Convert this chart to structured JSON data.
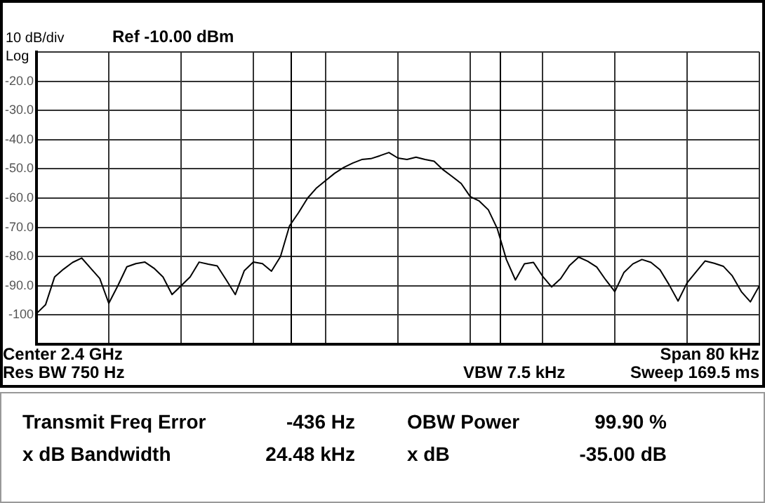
{
  "chart_data": {
    "type": "line",
    "annotations": [
      "10 dB/div",
      "Log",
      "Ref -10.00 dBm",
      "Center 2.4 GHz",
      "Span 80 kHz",
      "Res BW 750 Hz",
      "VBW 7.5 kHz",
      "Sweep 169.5 ms",
      "Transmit Freq Error",
      "-436 Hz",
      "OBW Power",
      "99.90 %",
      "x dB Bandwidth",
      "24.48 kHz",
      "x dB",
      "-35.00 dB"
    ],
    "categories": [
      null,
      null,
      null,
      null,
      null,
      null,
      null,
      null,
      null,
      null,
      null,
      null,
      null,
      null,
      null,
      null,
      null,
      null,
      null,
      null,
      null,
      null,
      null,
      null,
      null,
      null,
      null,
      null,
      null,
      null,
      null,
      null,
      null,
      null,
      null,
      null,
      null,
      null,
      null,
      null,
      null,
      null,
      null,
      null,
      null,
      null,
      null,
      null,
      null,
      null,
      null,
      null,
      null,
      null,
      null,
      null,
      null,
      null,
      null,
      null,
      null,
      null,
      null,
      null,
      null,
      null,
      null,
      null,
      null,
      null,
      null,
      null,
      null,
      null,
      null,
      null,
      null,
      null,
      null,
      null,
      null
    ],
    "ylim": [
      -110,
      -10
    ],
    "yticks": [
      {
        "value": -10,
        "label": null
      },
      {
        "value": -20,
        "label": "-20.0"
      },
      {
        "value": -30,
        "label": "-30.0"
      },
      {
        "value": -40,
        "label": "-40.0"
      },
      {
        "value": -50,
        "label": "-50.0"
      },
      {
        "value": -60,
        "label": "-60.0"
      },
      {
        "value": -70,
        "label": "-70.0"
      },
      {
        "value": -80,
        "label": "-80.0"
      },
      {
        "value": -90,
        "label": "-90.0"
      },
      -100,
      {
        "value": -110,
        "label": null
      }
    ],
    "tick_labels": "y",
    "grid": true,
    "marker": "none",
    "series": [
      {
        "color": "#000000",
        "values": [
          -99.5,
          -96.5,
          -87,
          -84.3,
          -82,
          -80.5,
          -84,
          -87.5,
          -96,
          -90,
          -83.5,
          -82.4,
          -81.9,
          -84,
          -87,
          -93,
          -90,
          -87,
          -81.9,
          -82.6,
          -83.2,
          -88,
          -93,
          -84.8,
          -81.9,
          -82.4,
          -85,
          -80,
          -69.5,
          -65,
          -60,
          -56.5,
          -54,
          -51.5,
          -49.5,
          -48,
          -46.8,
          -46.5,
          -45.5,
          -44.4,
          -46.3,
          -46.8,
          -46,
          -46.8,
          -47.4,
          -50.3,
          -52.6,
          -55,
          -59.5,
          -61,
          -64,
          -70.5,
          -81,
          -88,
          -82.5,
          -82,
          -86.7,
          -90.4,
          -87.6,
          -83,
          -80.2,
          -81.6,
          -83.6,
          -88,
          -92,
          -85.5,
          -82.5,
          -81,
          -82,
          -84.5,
          -89.6,
          -95.2,
          -89,
          -85.2,
          -81.5,
          -82.3,
          -83.3,
          -86.6,
          -92,
          -95.5,
          -90
        ]
      }
    ]
  }
}
